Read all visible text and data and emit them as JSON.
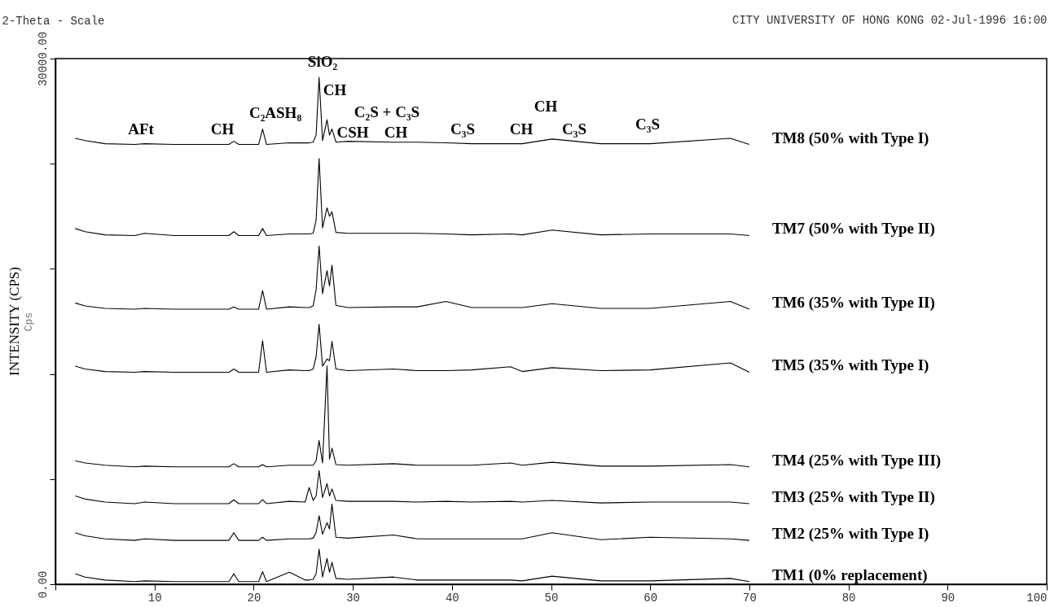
{
  "chart_data": {
    "type": "line",
    "title": "CITY UNIVERSITY OF HONG KONG 02-Jul-1996 16:00",
    "xlabel": "2-Theta - Scale",
    "ylabel": "Cps",
    "xlim": [
      0,
      100
    ],
    "xticks": [
      {
        "value": 0,
        "label": null
      },
      10,
      20,
      30,
      40,
      50,
      60,
      70,
      80,
      90,
      100
    ],
    "ylim": [
      0,
      30000
    ],
    "yticks": [
      {
        "value": 0,
        "label": "0.00"
      },
      {
        "value": 6000,
        "label": null
      },
      {
        "value": 12000,
        "label": null
      },
      {
        "value": 18000,
        "label": null
      },
      {
        "value": 24000,
        "label": null
      },
      {
        "value": 30000,
        "label": "30000.00"
      }
    ],
    "x": [
      2,
      3,
      5,
      8,
      9,
      12,
      17.5,
      18,
      18.5,
      20.5,
      20.9,
      21.3,
      23.6,
      25.2,
      25.6,
      26.0,
      26.3,
      26.6,
      26.95,
      27.4,
      27.65,
      27.9,
      28.3,
      29.5,
      34.1,
      36.5,
      39.4,
      42,
      45.9,
      47.1,
      50.1,
      55,
      60,
      68.1,
      70
    ],
    "series": [
      {
        "name": "TM8 (50% with Type I)",
        "color": "#000000",
        "values": [
          25450,
          25320,
          25140,
          25100,
          25140,
          25100,
          25100,
          25280,
          25100,
          25100,
          25980,
          25100,
          25190,
          25190,
          25190,
          25230,
          25630,
          28930,
          25320,
          26510,
          25630,
          25980,
          25230,
          25280,
          25230,
          25230,
          25190,
          25140,
          25140,
          25140,
          25410,
          25140,
          25140,
          25450,
          25100
        ]
      },
      {
        "name": "TM7 (50% with Type II)",
        "color": "#000000",
        "values": [
          20300,
          20120,
          19940,
          19900,
          20030,
          19900,
          19900,
          20120,
          19900,
          19900,
          20300,
          19900,
          19990,
          19990,
          19990,
          20030,
          20780,
          24300,
          20340,
          21480,
          21000,
          21260,
          20080,
          20030,
          20030,
          20030,
          19990,
          19940,
          19990,
          19940,
          20210,
          19940,
          19990,
          19990,
          19900
        ]
      },
      {
        "name": "TM6 (35% with Type II)",
        "color": "#000000",
        "values": [
          16050,
          15880,
          15740,
          15700,
          15740,
          15700,
          15700,
          15830,
          15700,
          15700,
          16760,
          15700,
          15830,
          15790,
          15790,
          15880,
          16800,
          19310,
          16580,
          17900,
          17020,
          18210,
          15920,
          15790,
          15830,
          15830,
          16140,
          15790,
          15790,
          15790,
          16010,
          15740,
          15740,
          16140,
          15700
        ]
      },
      {
        "name": "TM5 (35% with Type I)",
        "color": "#000000",
        "values": [
          12450,
          12280,
          12140,
          12100,
          12140,
          12100,
          12100,
          12280,
          12100,
          12100,
          13900,
          12100,
          12230,
          12190,
          12190,
          12280,
          12980,
          14830,
          12450,
          12850,
          12760,
          13860,
          12280,
          12190,
          12280,
          12190,
          12190,
          12230,
          12410,
          12140,
          12360,
          12190,
          12230,
          12630,
          12100
        ]
      },
      {
        "name": "TM4 (25% with Type III)",
        "color": "#000000",
        "values": [
          7050,
          6920,
          6790,
          6700,
          6740,
          6700,
          6700,
          6880,
          6700,
          6700,
          6830,
          6700,
          6790,
          6790,
          6790,
          6790,
          7050,
          8200,
          6920,
          12460,
          7140,
          7760,
          6830,
          6790,
          6880,
          6790,
          6790,
          6790,
          6920,
          6790,
          6960,
          6740,
          6740,
          6830,
          6700
        ]
      },
      {
        "name": "TM3 (25% with Type II)",
        "color": "#000000",
        "values": [
          5040,
          4860,
          4690,
          4600,
          4690,
          4600,
          4600,
          4820,
          4600,
          4600,
          4820,
          4600,
          4730,
          4690,
          5520,
          4780,
          5040,
          6490,
          4950,
          5740,
          5040,
          5440,
          4780,
          4730,
          4730,
          4690,
          4730,
          4690,
          4730,
          4690,
          4780,
          4640,
          4690,
          4690,
          4600
        ]
      },
      {
        "name": "TM2 (25% with Type I)",
        "color": "#000000",
        "values": [
          2940,
          2760,
          2590,
          2500,
          2590,
          2500,
          2500,
          2940,
          2500,
          2500,
          2680,
          2500,
          2590,
          2590,
          2590,
          2630,
          2940,
          3910,
          2850,
          3510,
          3160,
          4570,
          2680,
          2630,
          2810,
          2590,
          2590,
          2590,
          2590,
          2590,
          2940,
          2540,
          2680,
          2590,
          2500
        ]
      },
      {
        "name": "TM1 (0% replacement)",
        "color": "#000000",
        "values": [
          590,
          410,
          240,
          150,
          190,
          150,
          150,
          590,
          150,
          150,
          720,
          150,
          680,
          240,
          240,
          280,
          590,
          2000,
          410,
          1470,
          680,
          1250,
          330,
          280,
          410,
          240,
          240,
          240,
          240,
          190,
          460,
          190,
          190,
          330,
          150
        ]
      }
    ],
    "annotations": [
      "INTENSITY (CPS)",
      "AFt",
      "CH",
      "C₂ASH₈",
      "SiO₂",
      "CH",
      "C₂S + C₃S",
      "CSH",
      "CH",
      "C₃S",
      "CH",
      "CH",
      "C₃S",
      "C₃S"
    ]
  }
}
